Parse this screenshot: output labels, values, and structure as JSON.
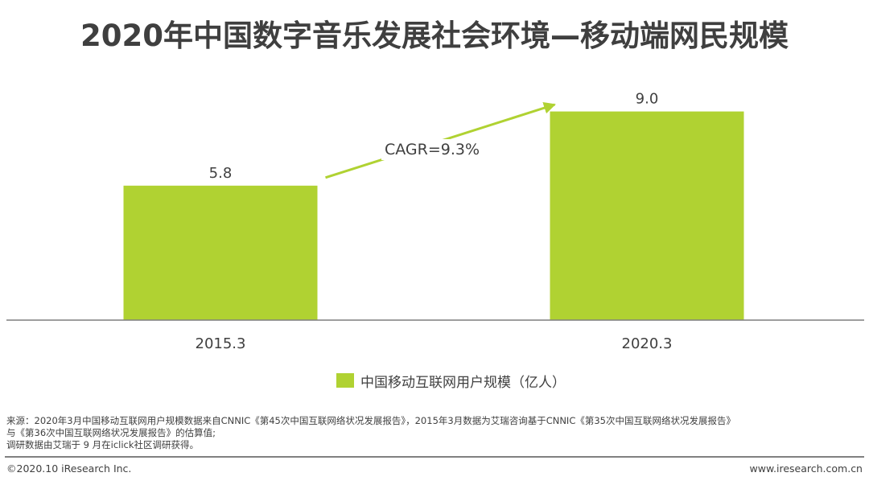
{
  "title": "2020年中国数字音乐发展社会环境—移动端网民规模",
  "chart_data": {
    "type": "bar",
    "categories": [
      "2015.3",
      "2020.3"
    ],
    "series": [
      {
        "name": "中国移动互联网用户规模（亿人）",
        "values": [
          5.8,
          9.0
        ]
      }
    ],
    "data_labels": [
      "5.8",
      "9.0"
    ],
    "annotation": "CAGR=9.3%",
    "ylim": [
      0,
      10.2
    ],
    "grid": false,
    "legend_position": "bottom",
    "bar_color": "#b0d232",
    "arrow_color": "#b0d232",
    "axis_color": "#7f7f7f"
  },
  "source": {
    "line1": "来源：2020年3月中国移动互联网用户规模数据来自CNNIC《第45次中国互联网络状况发展报告》，2015年3月数据为艾瑞咨询基于CNNIC《第35次中国互联网络状况发展报告》",
    "line2": "与《第36次中国互联网络状况发展报告》的估算值;",
    "line3": "调研数据由艾瑞于 9 月在iclick社区调研获得。"
  },
  "footer": {
    "copyright": "©2020.10 iResearch Inc.",
    "website": "www.iresearch.com.cn"
  }
}
